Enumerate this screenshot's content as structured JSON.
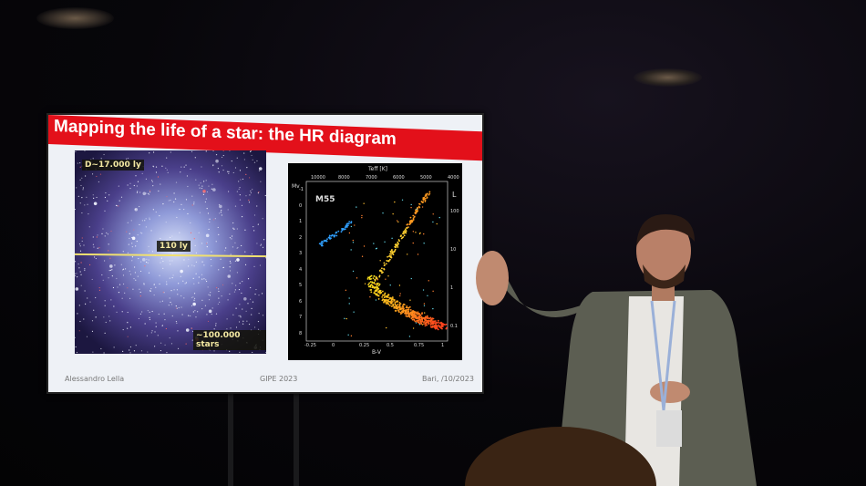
{
  "slide": {
    "title": "Mapping the life of a star: the HR diagram",
    "left_image": {
      "distance_label": "D~17.000 ly",
      "diameter_label": "110 ly",
      "stars_label": "~100.000 stars"
    },
    "hr_diagram": {
      "cluster_label": "M55",
      "top_axis_label": "Teff [K]",
      "top_ticks": [
        "10000",
        "8000",
        "7000",
        "6000",
        "5000",
        "4000"
      ],
      "left_axis_label": "Mv",
      "left_ticks": [
        "-1",
        "0",
        "1",
        "2",
        "3",
        "4",
        "5",
        "6",
        "7",
        "8"
      ],
      "right_axis_label": "L",
      "right_ticks": [
        "100",
        "10",
        "1",
        "0.1"
      ],
      "bottom_axis_label": "B-V",
      "bottom_ticks": [
        "-0.25",
        "0",
        "0.25",
        "0.5",
        "0.75",
        "1"
      ]
    },
    "footer": {
      "author": "Alessandro Lella",
      "event": "GIPE 2023",
      "place_date": "Bari, /10/2023"
    }
  },
  "colors": {
    "title_bar": "#e3101a",
    "slide_bg": "#eef1f6",
    "room": "#050507"
  }
}
